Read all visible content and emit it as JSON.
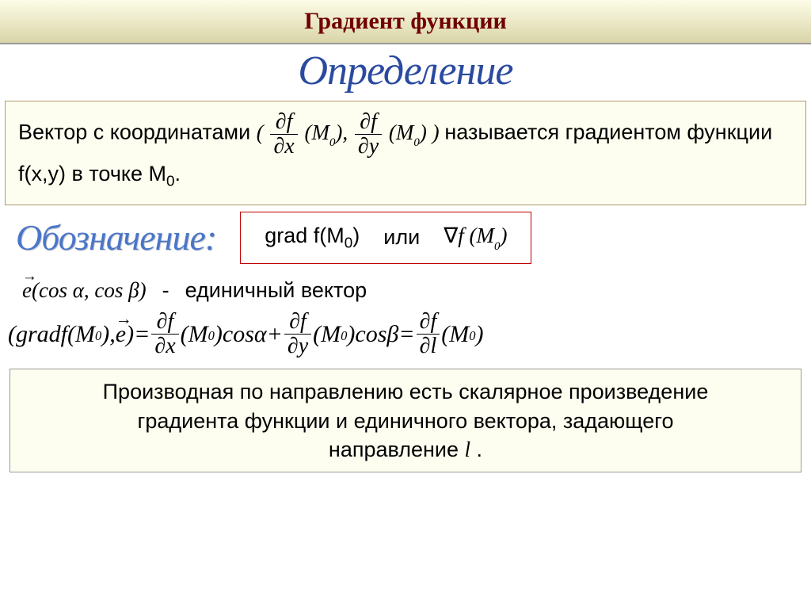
{
  "colors": {
    "title_bg_top": "#fdfce7",
    "title_bg_bottom": "#d9d5a8",
    "title_text": "#700000",
    "def_header_text": "#2a4aa0",
    "def_box_bg": "#fefef0",
    "def_box_border": "#b09a70",
    "sub_header_text": "#4a76c9",
    "notation_border": "#c00000",
    "conclusion_bg": "#fefef0",
    "conclusion_border": "#999999"
  },
  "typography": {
    "title_fontsize": 30,
    "def_header_fontsize": 52,
    "body_fontsize": 27,
    "sub_header_fontsize": 46,
    "formula_fontsize": 30
  },
  "title": "Градиент функции",
  "def_header": "Определение",
  "def_text_pre": "Вектор с координатами ",
  "def_text_post": "называется градиентом функции f(x,y) в точке М",
  "def_text_sub": "0",
  "def_text_dot": ".",
  "sub_header": "Обозначение:",
  "notation_grad": "grad f(M",
  "notation_grad_sub": "0",
  "notation_grad_close": ")",
  "notation_or": "или",
  "unit_vector_dash": "-",
  "unit_vector_label": "единичный вектор",
  "conclusion_line1": "Производная по направлению есть скалярное произведение",
  "conclusion_line2_a": "градиента функции и единичного вектора, задающего",
  "conclusion_line3_a": "направление ",
  "conclusion_line3_b": "l",
  "conclusion_line3_c": " .",
  "formulas": {
    "coord_open": "( ",
    "coord_comma": ", ",
    "coord_close": " )",
    "partial": "∂",
    "f": "f",
    "x": "x",
    "y": "y",
    "l": "l",
    "M": "M",
    "nabla": "∇",
    "e": "e",
    "cos": "cos",
    "alpha": "α",
    "beta": "β",
    "gradf": "gradf",
    "eq": " = ",
    "plus": " + "
  }
}
